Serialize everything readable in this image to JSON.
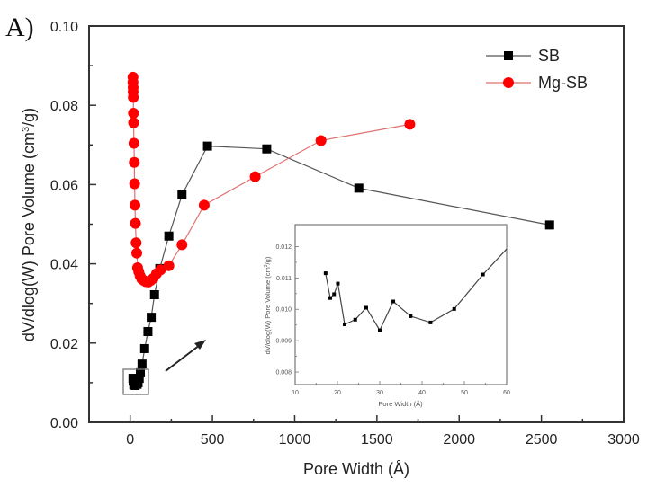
{
  "panel_label": "A)",
  "chart_data": [
    {
      "type": "line",
      "name": "main",
      "title": "",
      "xlabel": "Pore Width (Å)",
      "ylabel": "dV/dlog(W) Pore Volume (cm³/g)",
      "ylabel_parts": {
        "pre": "dV/dlog(W) Pore Volume (cm",
        "sup": "3",
        "post": "/g)"
      },
      "xlim": [
        -250,
        3000
      ],
      "ylim": [
        0,
        0.1
      ],
      "xticks": [
        0,
        500,
        1000,
        1500,
        2000,
        2500,
        3000
      ],
      "xtick_labels": [
        "0",
        "500",
        "1000",
        "1500",
        "2000",
        "2500",
        "3000"
      ],
      "yticks": [
        0,
        0.02,
        0.04,
        0.06,
        0.08,
        0.1
      ],
      "ytick_labels": [
        "0.00",
        "0.02",
        "0.04",
        "0.06",
        "0.08",
        "0.10"
      ],
      "grid": false,
      "legend": {
        "position": "top-right",
        "entries": [
          "SB",
          "Mg-SB"
        ]
      },
      "series": [
        {
          "name": "SB",
          "marker": "square",
          "color": "#000000",
          "line_color": "#555555",
          "x": [
            17,
            18,
            19,
            20,
            22,
            24,
            27,
            30,
            33,
            37,
            42,
            48,
            55,
            62,
            72,
            88,
            108,
            128,
            148,
            180,
            235,
            315,
            470,
            830,
            1390,
            2550
          ],
          "y": [
            0.0111,
            0.0104,
            0.0105,
            0.0108,
            0.0095,
            0.0097,
            0.0101,
            0.0093,
            0.0103,
            0.0098,
            0.0096,
            0.01,
            0.0111,
            0.0125,
            0.0147,
            0.0186,
            0.0229,
            0.0265,
            0.0322,
            0.0388,
            0.047,
            0.0574,
            0.0697,
            0.069,
            0.0591,
            0.0498
          ]
        },
        {
          "name": "Mg-SB",
          "marker": "circle",
          "color": "#ff0000",
          "line_color": "#e07070",
          "x": [
            17,
            17,
            18,
            18,
            19,
            20,
            21,
            23,
            25,
            27,
            29,
            32,
            36,
            40,
            45,
            52,
            60,
            70,
            82,
            95,
            110,
            125,
            140,
            160,
            185,
            235,
            315,
            450,
            760,
            1160,
            1700
          ],
          "y": [
            0.0871,
            0.0858,
            0.0845,
            0.0834,
            0.082,
            0.078,
            0.0756,
            0.0704,
            0.0656,
            0.0602,
            0.0548,
            0.0502,
            0.0453,
            0.0427,
            0.039,
            0.038,
            0.037,
            0.0362,
            0.0358,
            0.0355,
            0.0354,
            0.0358,
            0.0363,
            0.0375,
            0.0385,
            0.0395,
            0.0448,
            0.0548,
            0.062,
            0.0711,
            0.0752
          ]
        }
      ],
      "annotations": [
        "zoom-box around SB points near 0 Å",
        "arrow pointing to inset"
      ]
    },
    {
      "type": "line",
      "name": "inset",
      "title": "",
      "xlabel": "Pore Width (Å)",
      "ylabel": "dV/dlog(W) Pore Volume (cm³/g)",
      "ylabel_parts": {
        "pre": "dV/dlog(W) Pore Volume (cm",
        "sup": "3",
        "post": "/g)"
      },
      "xlim": [
        10,
        60
      ],
      "ylim": [
        0.0076,
        0.0127
      ],
      "xticks": [
        10,
        20,
        30,
        40,
        50,
        60
      ],
      "xtick_labels": [
        "10",
        "20",
        "30",
        "40",
        "50",
        "60"
      ],
      "yticks": [
        0.008,
        0.009,
        0.01,
        0.011,
        0.012
      ],
      "ytick_labels": [
        "0.008",
        "0.009",
        "0.010",
        "0.011",
        "0.012"
      ],
      "grid": false,
      "series": [
        {
          "name": "SB",
          "marker": "square",
          "color": "#000000",
          "line_color": "#444444",
          "x": [
            17.2,
            18.3,
            19.2,
            20.1,
            21.7,
            24.2,
            26.8,
            30.0,
            33.2,
            37.3,
            42.0,
            47.6,
            54.4,
            60.0
          ],
          "y": [
            0.01115,
            0.01036,
            0.01048,
            0.01082,
            0.00952,
            0.00967,
            0.01005,
            0.00933,
            0.01025,
            0.00978,
            0.00958,
            0.01001,
            0.01111,
            0.01192
          ],
          "marker_mask": [
            true,
            true,
            true,
            true,
            true,
            true,
            true,
            true,
            true,
            true,
            true,
            true,
            true,
            false
          ]
        }
      ]
    }
  ]
}
